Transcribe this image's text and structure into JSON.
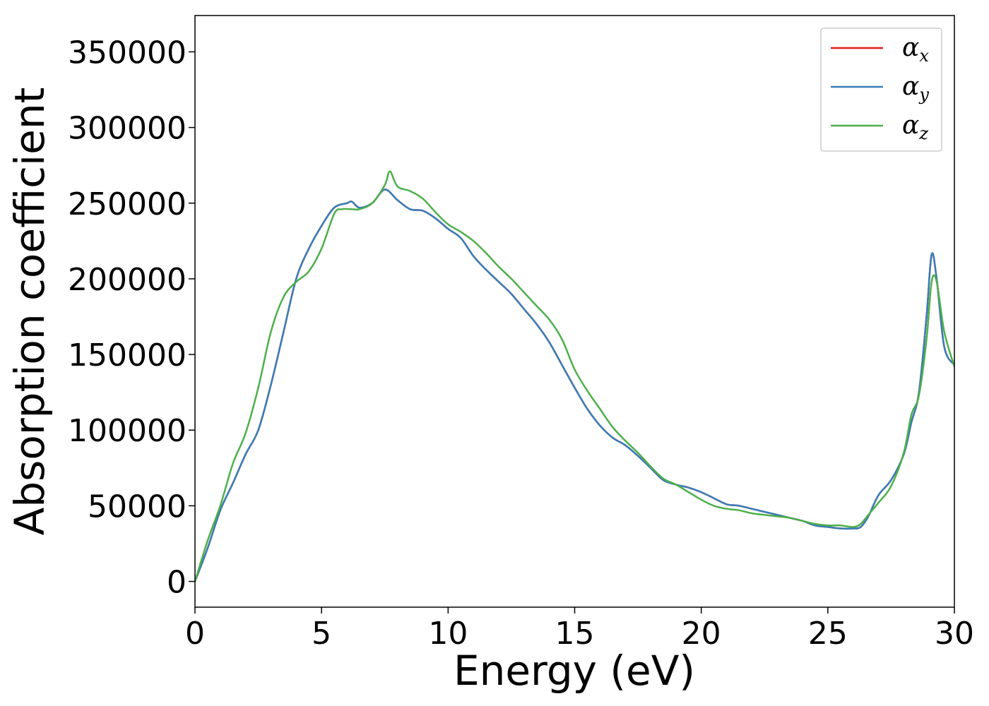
{
  "chart_data": {
    "type": "line",
    "xlabel": "Energy (eV)",
    "ylabel": "Absorption coefficient",
    "xlim": [
      0,
      30
    ],
    "ylim": [
      -17000,
      374000
    ],
    "xticks": [
      "0",
      "5",
      "10",
      "15",
      "20",
      "25",
      "30"
    ],
    "yticks": [
      "0",
      "50000",
      "100000",
      "150000",
      "200000",
      "250000",
      "300000",
      "350000"
    ],
    "grid": false,
    "legend_position": "top-right",
    "series": [
      {
        "name": "αx",
        "legend_base": "α",
        "legend_sub": "x",
        "color": "#e41a1c",
        "x": [
          0,
          0.5,
          1,
          1.5,
          2,
          2.5,
          3,
          3.5,
          4,
          4.5,
          5,
          5.5,
          6,
          6.2,
          6.5,
          7,
          7.5,
          8,
          8.5,
          9,
          9.5,
          10,
          10.5,
          11,
          11.5,
          12,
          12.5,
          13,
          13.5,
          14,
          14.5,
          15,
          15.5,
          16,
          16.5,
          17,
          17.5,
          18,
          18.5,
          19,
          19.5,
          20,
          20.5,
          21,
          21.5,
          22,
          22.5,
          23,
          23.5,
          24,
          24.5,
          25,
          25.5,
          26,
          26.3,
          26.6,
          27,
          27.5,
          28,
          28.3,
          28.6,
          28.9,
          29.1,
          29.3,
          29.6,
          30
        ],
        "values": [
          0,
          22000,
          47000,
          65000,
          84000,
          100000,
          130000,
          165000,
          200000,
          220000,
          235000,
          247000,
          250000,
          251000,
          247000,
          250000,
          259000,
          252000,
          246000,
          245000,
          240000,
          233000,
          227000,
          215000,
          206000,
          198000,
          190000,
          180000,
          170000,
          158000,
          143000,
          128000,
          114000,
          103000,
          95000,
          90000,
          83000,
          75000,
          67000,
          64000,
          62000,
          59000,
          55000,
          51000,
          50000,
          48000,
          46000,
          44000,
          42000,
          40000,
          37000,
          36000,
          35000,
          35000,
          36000,
          43000,
          57000,
          67000,
          84000,
          105000,
          125000,
          175000,
          216000,
          200000,
          155000,
          143000
        ]
      },
      {
        "name": "αy",
        "legend_base": "α",
        "legend_sub": "y",
        "color": "#377eb8",
        "x": [
          0,
          0.5,
          1,
          1.5,
          2,
          2.5,
          3,
          3.5,
          4,
          4.5,
          5,
          5.5,
          6,
          6.2,
          6.5,
          7,
          7.5,
          8,
          8.5,
          9,
          9.5,
          10,
          10.5,
          11,
          11.5,
          12,
          12.5,
          13,
          13.5,
          14,
          14.5,
          15,
          15.5,
          16,
          16.5,
          17,
          17.5,
          18,
          18.5,
          19,
          19.5,
          20,
          20.5,
          21,
          21.5,
          22,
          22.5,
          23,
          23.5,
          24,
          24.5,
          25,
          25.5,
          26,
          26.3,
          26.6,
          27,
          27.5,
          28,
          28.3,
          28.6,
          28.9,
          29.1,
          29.3,
          29.6,
          30
        ],
        "values": [
          0,
          22000,
          47000,
          65000,
          84000,
          100000,
          130000,
          165000,
          200000,
          220000,
          235000,
          247000,
          250000,
          251000,
          247000,
          250000,
          259000,
          252000,
          246000,
          245000,
          240000,
          233000,
          227000,
          215000,
          206000,
          198000,
          190000,
          180000,
          170000,
          158000,
          143000,
          128000,
          114000,
          103000,
          95000,
          90000,
          83000,
          75000,
          67000,
          64000,
          62000,
          59000,
          55000,
          51000,
          50000,
          48000,
          46000,
          44000,
          42000,
          40000,
          37000,
          36000,
          35000,
          35000,
          36000,
          43000,
          57000,
          67000,
          84000,
          105000,
          125000,
          175000,
          216000,
          200000,
          155000,
          143000
        ]
      },
      {
        "name": "αz",
        "legend_base": "α",
        "legend_sub": "z",
        "color": "#4daf4a",
        "x": [
          0,
          0.5,
          1,
          1.5,
          2,
          2.5,
          3,
          3.5,
          4,
          4.5,
          5,
          5.5,
          5.8,
          6.2,
          6.5,
          7,
          7.5,
          7.7,
          8,
          8.5,
          9,
          9.5,
          10,
          10.5,
          11,
          11.5,
          12,
          12.5,
          13,
          13.5,
          14,
          14.5,
          15,
          15.5,
          16,
          16.5,
          17,
          17.5,
          18,
          18.5,
          19,
          19.5,
          20,
          20.5,
          21,
          21.5,
          22,
          22.5,
          23,
          23.5,
          24,
          24.5,
          25,
          25.5,
          26,
          26.3,
          26.6,
          27,
          27.5,
          28,
          28.3,
          28.6,
          28.9,
          29.1,
          29.3,
          29.6,
          30
        ],
        "values": [
          0,
          27000,
          50000,
          78000,
          98000,
          128000,
          165000,
          188000,
          198000,
          205000,
          220000,
          243000,
          246000,
          246000,
          246000,
          250000,
          262000,
          271000,
          261000,
          258000,
          253000,
          244000,
          236000,
          231000,
          225000,
          217000,
          208000,
          200000,
          191000,
          182000,
          173000,
          160000,
          140000,
          126000,
          114000,
          102000,
          93000,
          85000,
          76000,
          68000,
          64000,
          59000,
          54000,
          50000,
          48000,
          47000,
          45000,
          44000,
          43000,
          42000,
          40000,
          38000,
          37000,
          37000,
          36000,
          38000,
          44000,
          52000,
          63000,
          85000,
          110000,
          123000,
          160000,
          198000,
          198000,
          165000,
          142000
        ]
      }
    ]
  }
}
